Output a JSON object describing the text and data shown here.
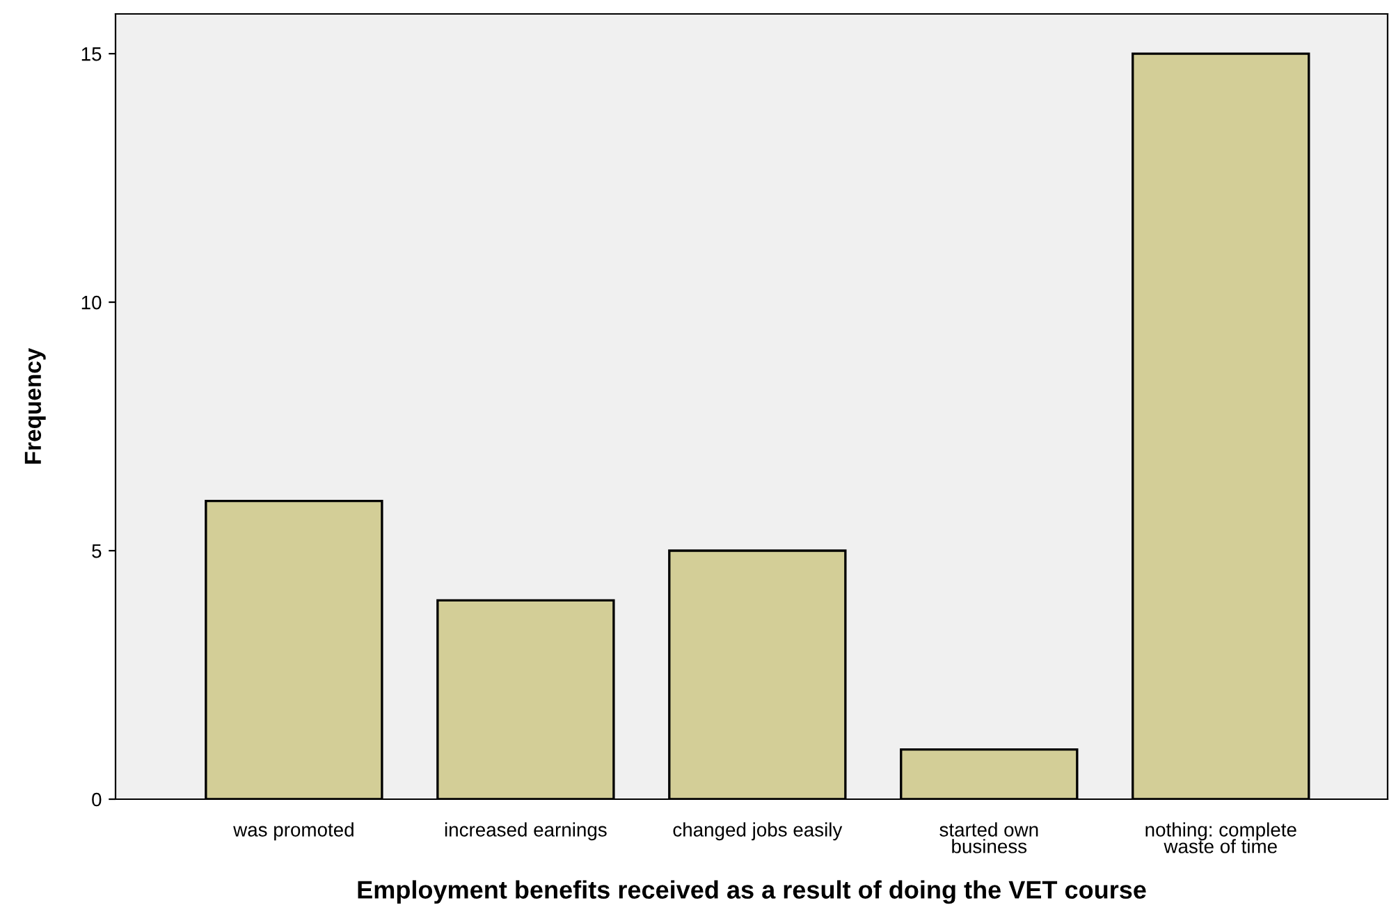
{
  "chart_data": {
    "type": "bar",
    "xlabel": "Employment benefits received as a result of doing the VET course",
    "ylabel": "Frequency",
    "categories": [
      "was promoted",
      "increased earnings",
      "changed jobs easily",
      "started own\nbusiness",
      "nothing: complete\nwaste of time"
    ],
    "values": [
      6,
      4,
      5,
      1,
      15
    ],
    "color": "#d3ce97",
    "ylim": [
      0,
      15.8
    ],
    "yticks": [
      0,
      5,
      10,
      15
    ],
    "grid": false
  }
}
